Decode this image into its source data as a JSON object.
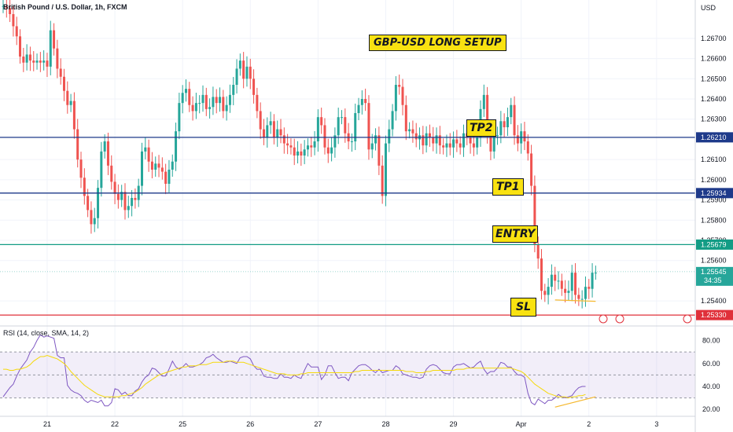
{
  "symbol_title": "British Pound / U.S. Dollar, 1h, FXCM",
  "currency": "USD",
  "rsi_title": "RSI (14, close, SMA, 14, 2)",
  "annotations": {
    "setup": "GBP-USD LONG SETUP",
    "tp2": "TP2",
    "tp1": "TP1",
    "entry": "ENTRY",
    "sl": "SL"
  },
  "chart_data": {
    "type": "candlestick",
    "instrument": "British Pound / U.S. Dollar",
    "interval": "1h",
    "source": "FXCM",
    "price_axis": {
      "ylim": [
        1.2528,
        1.2689
      ],
      "ticks": [
        "1.26700",
        "1.26600",
        "1.26500",
        "1.26400",
        "1.26300",
        "1.26100",
        "1.26000",
        "1.25900",
        "1.25800",
        "1.25700",
        "1.25600",
        "1.25400"
      ]
    },
    "x_axis": {
      "tick_labels": [
        {
          "label": "21",
          "index": 13
        },
        {
          "label": "22",
          "index": 33
        },
        {
          "label": "25",
          "index": 53
        },
        {
          "label": "26",
          "index": 73
        },
        {
          "label": "27",
          "index": 93
        },
        {
          "label": "28",
          "index": 113
        },
        {
          "label": "29",
          "index": 133
        },
        {
          "label": "Apr",
          "index": 153
        },
        {
          "label": "2",
          "index": 173
        },
        {
          "label": "3",
          "index": 193
        }
      ],
      "total_slots": 198
    },
    "levels": [
      {
        "name": "TP2",
        "value": 1.2621,
        "label": "1.26210",
        "color": "#1e3a8a"
      },
      {
        "name": "TP1",
        "value": 1.25934,
        "label": "1.25934",
        "color": "#1e3a8a"
      },
      {
        "name": "ENTRY",
        "value": 1.25679,
        "label": "1.25679",
        "color": "#139c85"
      },
      {
        "name": "SL",
        "value": 1.2533,
        "label": "1.25330",
        "color": "#e0303a"
      },
      {
        "name": "Last price",
        "value": 1.25545,
        "label": "1.25545",
        "countdown": "34:35",
        "color": "#26a69a"
      }
    ],
    "price_path": [
      1.2686,
      1.2685,
      1.2682,
      1.2676,
      1.2671,
      1.2661,
      1.2658,
      1.2662,
      1.2659,
      1.2658,
      1.2659,
      1.2658,
      1.2659,
      1.2656,
      1.2674,
      1.2665,
      1.2655,
      1.2651,
      1.2644,
      1.2637,
      1.2639,
      1.2625,
      1.261,
      1.2601,
      1.2592,
      1.2585,
      1.2578,
      1.2581,
      1.2596,
      1.2614,
      1.2619,
      1.2607,
      1.2599,
      1.2593,
      1.259,
      1.2594,
      1.2585,
      1.2587,
      1.2591,
      1.259,
      1.2597,
      1.2614,
      1.2616,
      1.2609,
      1.2605,
      1.2608,
      1.2606,
      1.2604,
      1.2598,
      1.2605,
      1.2609,
      1.2624,
      1.2638,
      1.2643,
      1.2645,
      1.2637,
      1.2634,
      1.2638,
      1.2638,
      1.2642,
      1.2635,
      1.2636,
      1.2641,
      1.2638,
      1.2641,
      1.2634,
      1.2637,
      1.2642,
      1.2647,
      1.2655,
      1.2659,
      1.265,
      1.2656,
      1.265,
      1.2642,
      1.2634,
      1.2625,
      1.2621,
      1.2627,
      1.2629,
      1.2621,
      1.2625,
      1.2622,
      1.2618,
      1.2617,
      1.2616,
      1.2612,
      1.2614,
      1.2612,
      1.2615,
      1.2617,
      1.2616,
      1.2619,
      1.2631,
      1.2627,
      1.2616,
      1.2613,
      1.2616,
      1.2622,
      1.2631,
      1.2631,
      1.2623,
      1.2619,
      1.2619,
      1.2633,
      1.2637,
      1.264,
      1.2638,
      1.2615,
      1.2618,
      1.2622,
      1.2607,
      1.2592,
      1.2618,
      1.2625,
      1.2634,
      1.2647,
      1.2646,
      1.2637,
      1.2624,
      1.2625,
      1.2623,
      1.262,
      1.2622,
      1.2617,
      1.2623,
      1.2621,
      1.2618,
      1.2622,
      1.2617,
      1.2616,
      1.2618,
      1.2616,
      1.262,
      1.2618,
      1.2616,
      1.2623,
      1.2621,
      1.2618,
      1.2616,
      1.2621,
      1.2635,
      1.2642,
      1.2623,
      1.2614,
      1.2622,
      1.2622,
      1.2629,
      1.2626,
      1.2631,
      1.2637,
      1.2622,
      1.2618,
      1.2624,
      1.2619,
      1.2613,
      1.2597,
      1.2568,
      1.2561,
      1.2545,
      1.2543,
      1.2547,
      1.2553,
      1.255,
      1.255,
      1.2546,
      1.2544,
      1.2545,
      1.2554,
      1.2543,
      1.2541,
      1.2541,
      1.2547,
      1.2546,
      1.2554,
      1.2554
    ],
    "price_line_ylim": [
      1.2528,
      1.2689
    ],
    "volume_note": "",
    "rsi": {
      "ticks": [
        "80.00",
        "60.00",
        "40.00",
        "20.00"
      ],
      "ylim": [
        14,
        92
      ],
      "band": [
        30,
        70
      ],
      "values": [
        31,
        35,
        39,
        42,
        49,
        55,
        59,
        63,
        70,
        74,
        80,
        85,
        83,
        84,
        83,
        82,
        67,
        65,
        65,
        41,
        37,
        35,
        34,
        32,
        28,
        26,
        28,
        27,
        26,
        28,
        23,
        23,
        26,
        38,
        37,
        33,
        35,
        32,
        32,
        36,
        38,
        44,
        48,
        50,
        56,
        55,
        52,
        49,
        49,
        55,
        62,
        57,
        55,
        57,
        60,
        57,
        57,
        58,
        59,
        61,
        65,
        66,
        68,
        65,
        63,
        61,
        61,
        62,
        61,
        60,
        65,
        66,
        66,
        64,
        58,
        55,
        55,
        49,
        48,
        48,
        47,
        47,
        51,
        48,
        48,
        47,
        50,
        48,
        47,
        54,
        60,
        57,
        57,
        57,
        46,
        50,
        58,
        58,
        52,
        47,
        48,
        48,
        45,
        52,
        55,
        58,
        59,
        59,
        57,
        54,
        52,
        55,
        52,
        53,
        54,
        54,
        58,
        56,
        51,
        50,
        49,
        48,
        48,
        47,
        48,
        55,
        58,
        59,
        58,
        55,
        52,
        51,
        51,
        57,
        59,
        59,
        60,
        58,
        56,
        57,
        60,
        62,
        55,
        51,
        53,
        53,
        56,
        61,
        60,
        57,
        57,
        53,
        50,
        50,
        48,
        34,
        26,
        24,
        29,
        27,
        25,
        28,
        28,
        30,
        33,
        31,
        30,
        31,
        32,
        36,
        39,
        40,
        40
      ],
      "sma": [
        55,
        55,
        54,
        54,
        55,
        55,
        56,
        57,
        59,
        62,
        64,
        66,
        66,
        67,
        66,
        65,
        64,
        62,
        60,
        57,
        53,
        50,
        47,
        44,
        41,
        39,
        37,
        35,
        33,
        32,
        31,
        31,
        31,
        31,
        31,
        32,
        32,
        33,
        34,
        35,
        37,
        39,
        42,
        44,
        46,
        48,
        50,
        51,
        52,
        53,
        54,
        55,
        56,
        57,
        57,
        58,
        58,
        58,
        59,
        59,
        59,
        60,
        61,
        61,
        61,
        61,
        62,
        62,
        62,
        61,
        61,
        61,
        60,
        59,
        58,
        57,
        56,
        55,
        54,
        53,
        52,
        51,
        51,
        51,
        50,
        50,
        50,
        50,
        51,
        51,
        52,
        52,
        52,
        52,
        52,
        52,
        52,
        52,
        52,
        52,
        52,
        52,
        52,
        52,
        53,
        53,
        54,
        54,
        54,
        54,
        54,
        54,
        54,
        54,
        54,
        54,
        54,
        54,
        54,
        53,
        53,
        53,
        52,
        52,
        52,
        53,
        53,
        54,
        54,
        54,
        54,
        54,
        54,
        54,
        55,
        55,
        55,
        56,
        56,
        56,
        56,
        56,
        56,
        56,
        56,
        56,
        56,
        56,
        56,
        56,
        56,
        55,
        54,
        53,
        51,
        48,
        45,
        42,
        40,
        38,
        36,
        34,
        33,
        32,
        31,
        31,
        31,
        30,
        31,
        31,
        32,
        32,
        33
      ]
    }
  }
}
